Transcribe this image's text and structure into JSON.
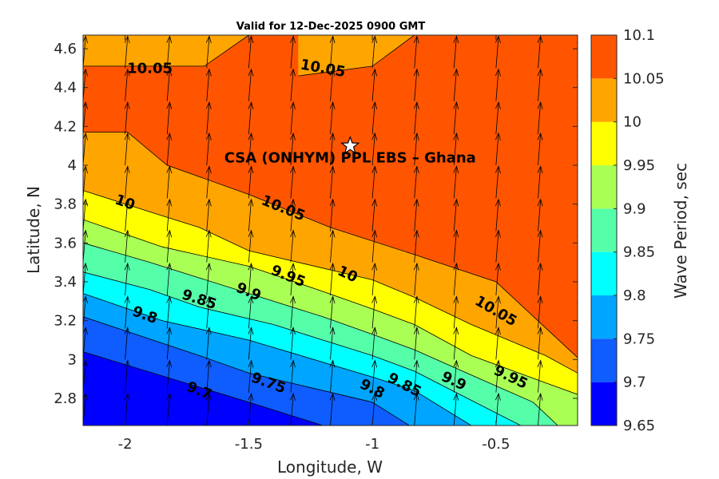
{
  "chart_data": {
    "type": "contour",
    "title": "Valid for 12-Dec-2025 0900 GMT",
    "xlabel": "Longitude, W",
    "ylabel": "Latitude, N",
    "xlim": [
      -2.17,
      -0.17
    ],
    "ylim": [
      2.66,
      4.67
    ],
    "x_ticks": [
      -2,
      -1.5,
      -1,
      -0.5
    ],
    "x_tick_labels": [
      "-2",
      "-1.5",
      "-1",
      "-0.5"
    ],
    "y_ticks": [
      2.8,
      3,
      3.2,
      3.4,
      3.6,
      3.8,
      4,
      4.2,
      4.4,
      4.6
    ],
    "y_tick_labels": [
      "2.8",
      "3",
      "3.2",
      "3.4",
      "3.6",
      "3.8",
      "4",
      "4.2",
      "4.4",
      "4.6"
    ],
    "colorbar": {
      "label": "Wave Period, sec",
      "range": [
        9.65,
        10.1
      ],
      "ticks": [
        9.65,
        9.7,
        9.75,
        9.8,
        9.85,
        9.9,
        9.95,
        10,
        10.05,
        10.1
      ],
      "tick_labels": [
        "9.65",
        "9.7",
        "9.75",
        "9.8",
        "9.85",
        "9.9",
        "9.95",
        "10",
        "10.05",
        "10.1"
      ],
      "colors": [
        "#0000ff",
        "#0f5cff",
        "#00a5ff",
        "#00ffff",
        "#55ffaa",
        "#aaff55",
        "#ffff00",
        "#ffa500",
        "#ff5500"
      ]
    },
    "contour_levels": [
      9.7,
      9.75,
      9.8,
      9.85,
      9.9,
      9.95,
      10,
      10.05
    ],
    "contour_lines": [
      {
        "level": 9.7,
        "x": [
          -2.17,
          -1.5,
          -1.2
        ],
        "y": [
          3.04,
          2.78,
          2.66
        ]
      },
      {
        "level": 9.75,
        "x": [
          -2.17,
          -1.7,
          -1.5,
          -1.0,
          -0.85
        ],
        "y": [
          3.22,
          3.02,
          2.93,
          2.78,
          2.66
        ]
      },
      {
        "level": 9.8,
        "x": [
          -2.17,
          -1.85,
          -1.5,
          -1.0,
          -0.83,
          -0.6
        ],
        "y": [
          3.34,
          3.2,
          3.1,
          2.91,
          2.84,
          2.66
        ]
      },
      {
        "level": 9.85,
        "x": [
          -2.17,
          -1.9,
          -1.7,
          -1.4,
          -1.0,
          -0.83,
          -0.6,
          -0.4
        ],
        "y": [
          3.45,
          3.36,
          3.27,
          3.18,
          3.02,
          2.94,
          2.79,
          2.66
        ]
      },
      {
        "level": 9.9,
        "x": [
          -2.17,
          -1.9,
          -1.7,
          -1.45,
          -1.2,
          -1.0,
          -0.83,
          -0.6,
          -0.35,
          -0.25
        ],
        "y": [
          3.6,
          3.5,
          3.42,
          3.32,
          3.22,
          3.13,
          3.05,
          2.92,
          2.78,
          2.66
        ]
      },
      {
        "level": 9.95,
        "x": [
          -2.17,
          -1.85,
          -1.5,
          -1.2,
          -1.0,
          -0.83,
          -0.6,
          -0.3,
          -0.17
        ],
        "y": [
          3.72,
          3.58,
          3.48,
          3.35,
          3.26,
          3.18,
          3.02,
          2.88,
          2.82
        ]
      },
      {
        "level": 10,
        "x": [
          -2.17,
          -1.85,
          -1.7,
          -1.5,
          -1.0,
          -0.83,
          -0.6,
          -0.3,
          -0.17
        ],
        "y": [
          3.87,
          3.74,
          3.68,
          3.56,
          3.41,
          3.32,
          3.18,
          3.02,
          2.93
        ]
      },
      {
        "level": 10.05,
        "x": [
          -2.17,
          -1.99,
          -1.83,
          -1.5,
          -1.17,
          -0.83,
          -0.5,
          -0.17
        ],
        "y": [
          4.17,
          4.17,
          4.0,
          3.85,
          3.68,
          3.54,
          3.4,
          3.01
        ]
      },
      {
        "level": 10.05,
        "x": [
          -2.17,
          -1.68,
          -1.5
        ],
        "y": [
          4.51,
          4.51,
          4.67
        ]
      },
      {
        "level": 10.05,
        "x": [
          -1.3,
          -1.0,
          -0.83
        ],
        "y": [
          4.46,
          4.51,
          4.67
        ]
      }
    ],
    "contour_labels": [
      {
        "text": "10.05",
        "x": -1.9,
        "y": 4.5,
        "angle": 0
      },
      {
        "text": "10.05",
        "x": -1.2,
        "y": 4.5,
        "angle": 10
      },
      {
        "text": "10.05",
        "x": -1.36,
        "y": 3.78,
        "angle": 22
      },
      {
        "text": "10.05",
        "x": -0.5,
        "y": 3.25,
        "angle": 30
      },
      {
        "text": "10",
        "x": -2.0,
        "y": 3.81,
        "angle": 20
      },
      {
        "text": "10",
        "x": -1.1,
        "y": 3.44,
        "angle": 25
      },
      {
        "text": "9.95",
        "x": -1.34,
        "y": 3.43,
        "angle": 22
      },
      {
        "text": "9.95",
        "x": -0.44,
        "y": 2.91,
        "angle": 26
      },
      {
        "text": "9.9",
        "x": -1.5,
        "y": 3.35,
        "angle": 22
      },
      {
        "text": "9.9",
        "x": -0.67,
        "y": 2.89,
        "angle": 25
      },
      {
        "text": "9.85",
        "x": -1.7,
        "y": 3.31,
        "angle": 18
      },
      {
        "text": "9.85",
        "x": -0.87,
        "y": 2.87,
        "angle": 27
      },
      {
        "text": "9.8",
        "x": -1.92,
        "y": 3.23,
        "angle": 20
      },
      {
        "text": "9.8",
        "x": -1.0,
        "y": 2.85,
        "angle": 27
      },
      {
        "text": "9.75",
        "x": -1.42,
        "y": 2.88,
        "angle": 20
      },
      {
        "text": "9.7",
        "x": -1.7,
        "y": 2.84,
        "angle": 22
      }
    ],
    "location_marker": {
      "label": "CSA (ONHYM) PPL EBS  – Ghana",
      "x": -1.09,
      "y": 4.1,
      "symbol": "star"
    },
    "arrow_grid": {
      "x": [
        -2.17,
        -2.0,
        -1.83,
        -1.67,
        -1.5,
        -1.33,
        -1.17,
        -1.0,
        -0.83,
        -0.67,
        -0.5,
        -0.33,
        -0.17
      ],
      "y": [
        2.66,
        2.83,
        3.0,
        3.16,
        3.33,
        3.5,
        3.66,
        3.83,
        4.0,
        4.16,
        4.33,
        4.5,
        4.67
      ],
      "direction": "northward, slight eastward tilt",
      "relative_length": 0.8
    }
  }
}
